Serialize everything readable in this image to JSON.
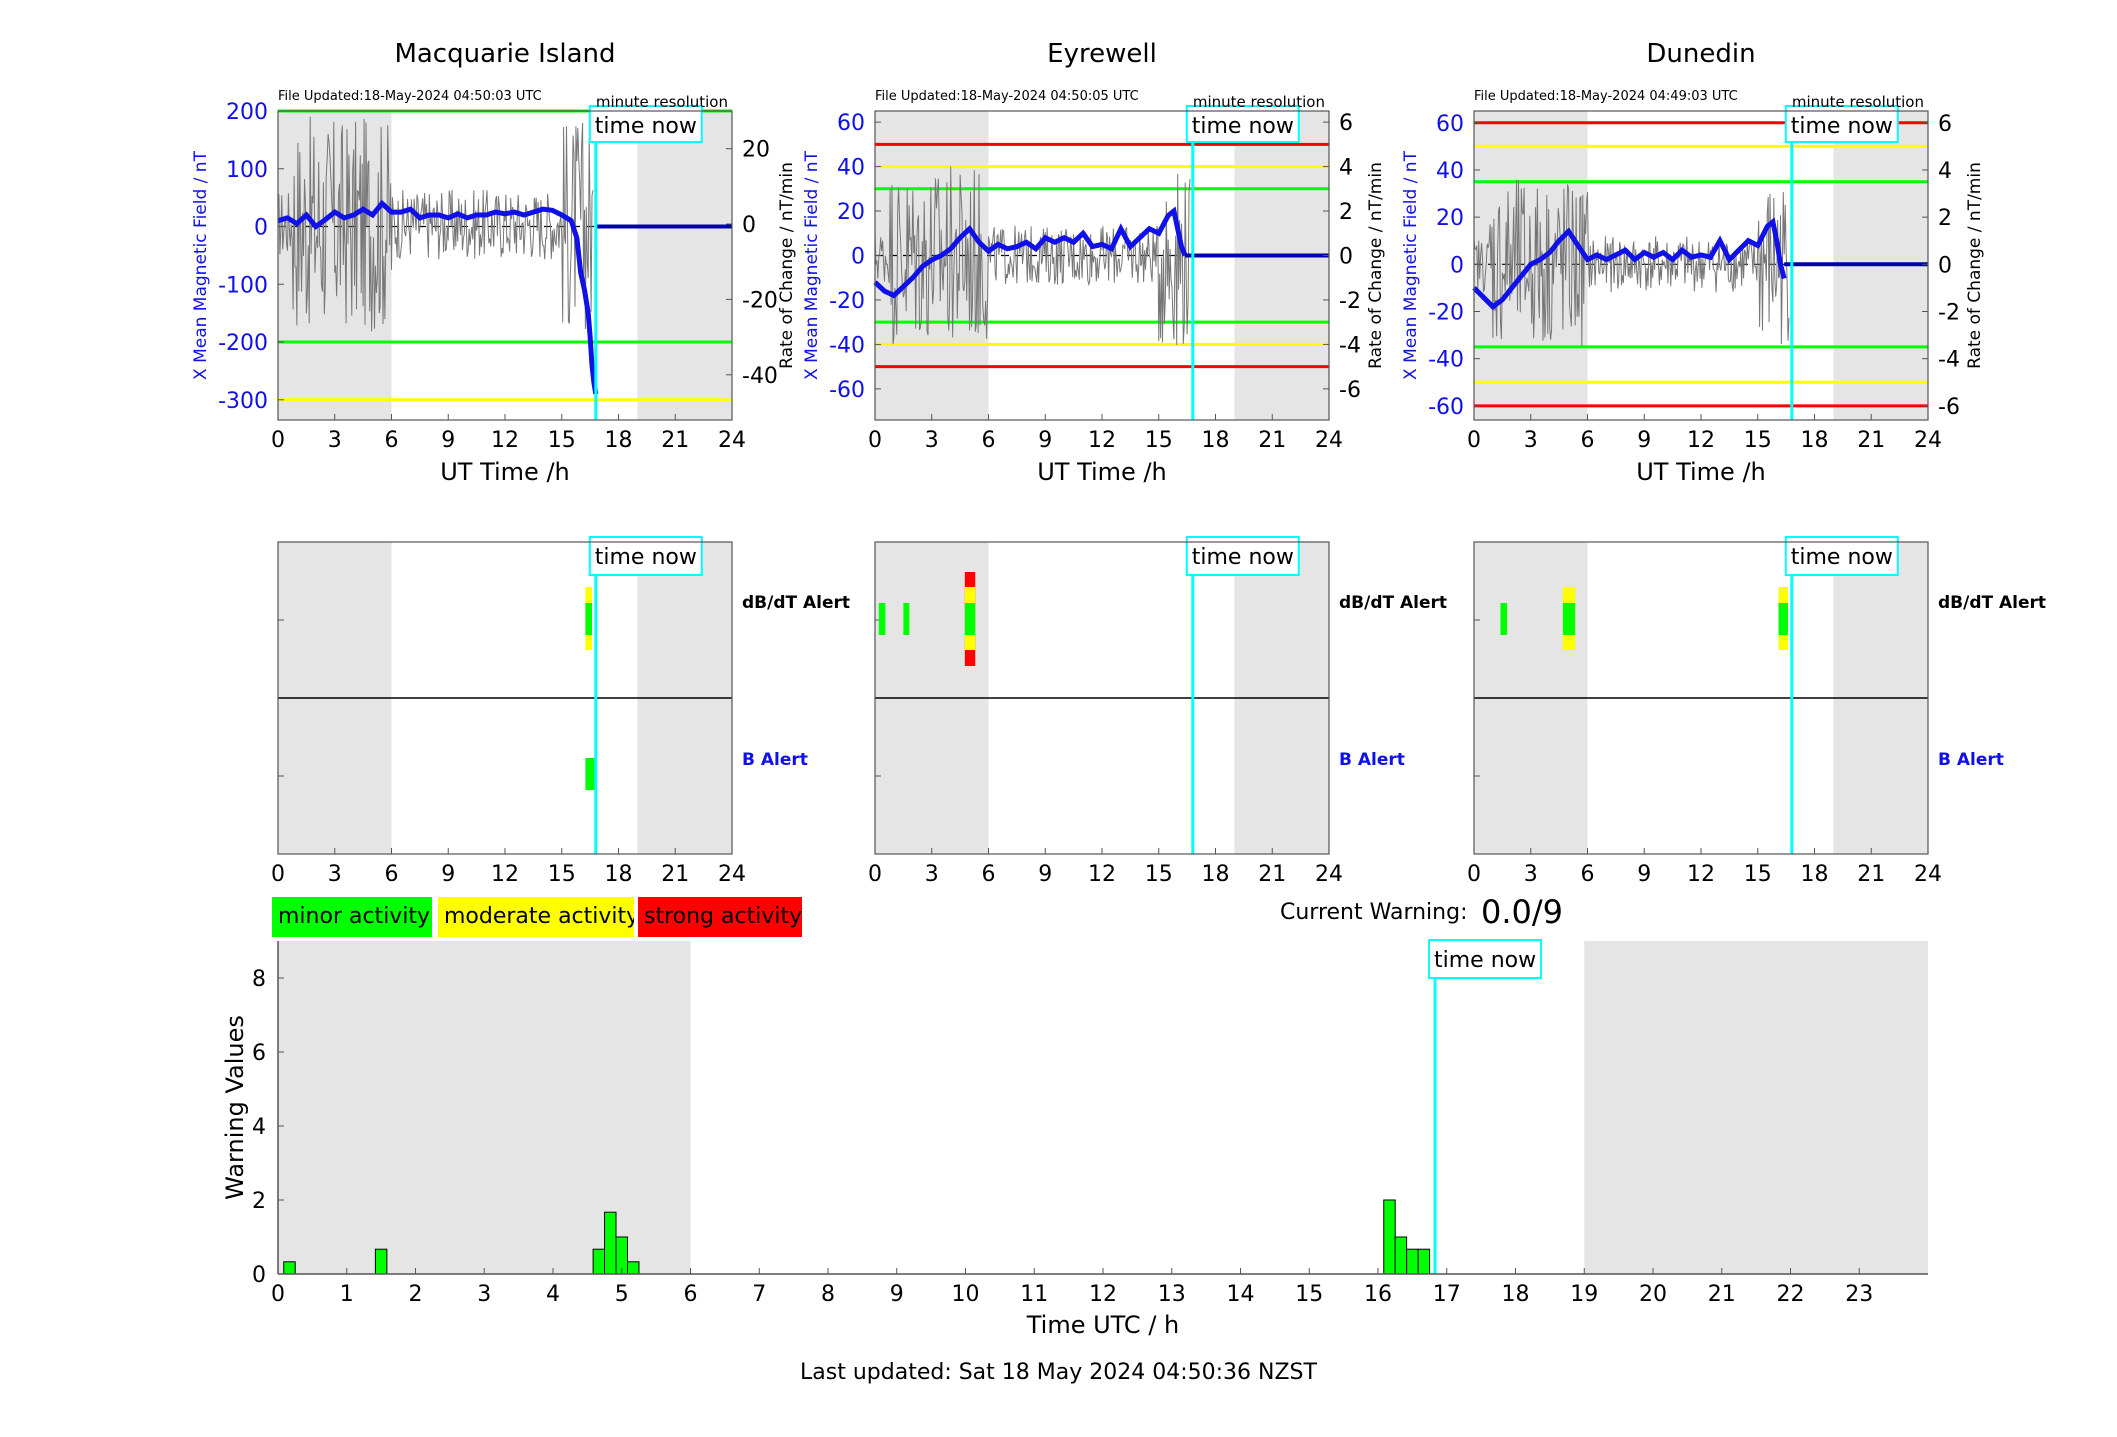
{
  "stations": [
    {
      "name": "Macquarie Island",
      "file_updated": "File Updated:18-May-2024 04:50:03 UTC",
      "resolution": "minute resolution",
      "ylabel_left": "X Mean Magnetic Field / nT",
      "ylabel_right": "Rate of Change / nT/min",
      "xlabel": "UT Time /h",
      "time_now_label": "time now",
      "ylim_left": [
        -335,
        200
      ],
      "yticks_left": [
        200,
        100,
        0,
        -100,
        -200,
        -300
      ],
      "ylim_right": [
        -52,
        30
      ],
      "yticks_right": [
        20,
        0,
        -20,
        -40
      ],
      "shade_hours": [
        [
          0,
          6
        ],
        [
          19,
          24
        ]
      ],
      "time_now_hour": 16.8,
      "threshold_lines": [
        {
          "value": 200,
          "color": "#00ff00"
        },
        {
          "value": -200,
          "color": "#00ff00"
        },
        {
          "value": -300,
          "color": "#ffff00"
        }
      ],
      "dbdt_alerts": [
        {
          "start": 16.25,
          "end": 16.6,
          "level": "moderate"
        }
      ],
      "b_alerts": [
        {
          "start": 16.25,
          "end": 16.85,
          "level": "minor"
        }
      ]
    },
    {
      "name": "Eyrewell",
      "file_updated": "File Updated:18-May-2024 04:50:05 UTC",
      "resolution": "minute resolution",
      "ylabel_left": "X Mean Magnetic Field / nT",
      "ylabel_right": "Rate of Change / nT/min",
      "xlabel": "UT Time /h",
      "time_now_label": "time now",
      "ylim_left": [
        -74,
        65
      ],
      "yticks_left": [
        60,
        40,
        20,
        0,
        -20,
        -40,
        -60
      ],
      "ylim_right": [
        -7.4,
        6.5
      ],
      "yticks_right": [
        6,
        4,
        2,
        0,
        -2,
        -4,
        -6
      ],
      "shade_hours": [
        [
          0,
          6
        ],
        [
          19,
          24
        ]
      ],
      "time_now_hour": 16.8,
      "threshold_lines": [
        {
          "value": 50,
          "color": "#ff0000"
        },
        {
          "value": 40,
          "color": "#ffff00"
        },
        {
          "value": 30,
          "color": "#00ff00"
        },
        {
          "value": -30,
          "color": "#00ff00"
        },
        {
          "value": -40,
          "color": "#ffff00"
        },
        {
          "value": -50,
          "color": "#ff0000"
        }
      ],
      "dbdt_alerts": [
        {
          "start": 0.2,
          "end": 0.55,
          "level": "minor"
        },
        {
          "start": 1.5,
          "end": 1.8,
          "level": "minor"
        },
        {
          "start": 4.75,
          "end": 5.3,
          "level": "strong"
        }
      ],
      "b_alerts": []
    },
    {
      "name": "Dunedin",
      "file_updated": "File Updated:18-May-2024 04:49:03 UTC",
      "resolution": "minute resolution",
      "ylabel_left": "X Mean Magnetic Field / nT",
      "ylabel_right": "Rate of Change / nT/min",
      "xlabel": "UT Time /h",
      "time_now_label": "time now",
      "ylim_left": [
        -66,
        65
      ],
      "yticks_left": [
        60,
        40,
        20,
        0,
        -20,
        -40,
        -60
      ],
      "ylim_right": [
        -6.6,
        6.5
      ],
      "yticks_right": [
        6,
        4,
        2,
        0,
        -2,
        -4,
        -6
      ],
      "shade_hours": [
        [
          0,
          6
        ],
        [
          19,
          24
        ]
      ],
      "time_now_hour": 16.8,
      "threshold_lines": [
        {
          "value": 60,
          "color": "#ff0000"
        },
        {
          "value": 50,
          "color": "#ffff00"
        },
        {
          "value": 35,
          "color": "#00ff00"
        },
        {
          "value": -35,
          "color": "#00ff00"
        },
        {
          "value": -50,
          "color": "#ffff00"
        },
        {
          "value": -60,
          "color": "#ff0000"
        }
      ],
      "dbdt_alerts": [
        {
          "start": 1.4,
          "end": 1.75,
          "level": "minor"
        },
        {
          "start": 4.7,
          "end": 5.35,
          "level": "moderate"
        },
        {
          "start": 16.1,
          "end": 16.6,
          "level": "moderate"
        }
      ],
      "b_alerts": []
    }
  ],
  "alert_labels": {
    "dbdt": "dB/dT Alert",
    "b": "B Alert"
  },
  "xticks_hours": [
    0,
    3,
    6,
    9,
    12,
    15,
    18,
    21,
    24
  ],
  "legend": {
    "minor": "minor activity",
    "moderate": "moderate activity",
    "strong": "strong activity",
    "colors": {
      "minor": "#00ff00",
      "moderate": "#ffff00",
      "strong": "#ff0000",
      "inner_strong": "#00ff00"
    }
  },
  "current_warning": {
    "label": "Current Warning:",
    "value": "0.0/9"
  },
  "last_updated": "Last updated: Sat 18 May 2024 04:50:36 NZST",
  "chart_data": [
    {
      "type": "line",
      "title": "Macquarie Island",
      "xlabel": "UT Time /h",
      "ylabel": "X Mean Magnetic Field / nT",
      "ylabel_right": "Rate of Change / nT/min",
      "xlim": [
        0,
        24
      ],
      "ylim": [
        -335,
        200
      ],
      "series": [
        {
          "x": [
            0,
            0.5,
            1,
            1.5,
            2,
            2.5,
            3,
            3.5,
            4,
            4.5,
            5,
            5.5,
            6,
            6.5,
            7,
            7.5,
            8,
            8.5,
            9,
            9.5,
            10,
            10.5,
            11,
            11.5,
            12,
            12.5,
            13,
            13.5,
            14,
            14.5,
            15,
            15.5,
            15.8,
            16,
            16.2,
            16.4,
            16.5,
            16.6,
            16.7,
            16.8
          ],
          "y": [
            10,
            15,
            5,
            20,
            0,
            12,
            25,
            15,
            20,
            30,
            20,
            40,
            25,
            25,
            30,
            15,
            20,
            20,
            15,
            22,
            15,
            20,
            20,
            25,
            22,
            25,
            20,
            25,
            30,
            28,
            20,
            10,
            -20,
            -80,
            -110,
            -150,
            -190,
            -240,
            -270,
            -290
          ]
        },
        {
          "x": [
            16.8,
            24
          ],
          "y": [
            0,
            0
          ]
        }
      ]
    },
    {
      "type": "line",
      "title": "Eyrewell",
      "xlabel": "UT Time /h",
      "ylabel": "X Mean Magnetic Field / nT",
      "ylabel_right": "Rate of Change / nT/min",
      "xlim": [
        0,
        24
      ],
      "ylim": [
        -74,
        65
      ],
      "series": [
        {
          "x": [
            0,
            0.5,
            1,
            1.5,
            2,
            2.5,
            3,
            3.5,
            4,
            4.5,
            5,
            5.5,
            6,
            6.5,
            7,
            7.5,
            8,
            8.5,
            9,
            9.5,
            10,
            10.5,
            11,
            11.5,
            12,
            12.5,
            13,
            13.5,
            14,
            14.5,
            15,
            15.5,
            15.8,
            16,
            16.2,
            16.4
          ],
          "y": [
            -12,
            -16,
            -18,
            -14,
            -10,
            -5,
            -2,
            0,
            3,
            8,
            12,
            6,
            2,
            5,
            3,
            4,
            6,
            3,
            8,
            6,
            8,
            6,
            10,
            4,
            5,
            3,
            12,
            4,
            8,
            12,
            10,
            18,
            20,
            12,
            4,
            0
          ]
        },
        {
          "x": [
            16.4,
            24
          ],
          "y": [
            0,
            0
          ]
        }
      ]
    },
    {
      "type": "line",
      "title": "Dunedin",
      "xlabel": "UT Time /h",
      "ylabel": "X Mean Magnetic Field / nT",
      "ylabel_right": "Rate of Change / nT/min",
      "xlim": [
        0,
        24
      ],
      "ylim": [
        -66,
        65
      ],
      "series": [
        {
          "x": [
            0,
            0.5,
            1,
            1.5,
            2,
            2.5,
            3,
            3.5,
            4,
            4.5,
            5,
            5.5,
            6,
            6.5,
            7,
            7.5,
            8,
            8.5,
            9,
            9.5,
            10,
            10.5,
            11,
            11.5,
            12,
            12.5,
            13,
            13.5,
            14,
            14.5,
            15,
            15.5,
            15.8,
            16,
            16.2,
            16.4
          ],
          "y": [
            -10,
            -14,
            -18,
            -15,
            -10,
            -5,
            0,
            2,
            5,
            10,
            14,
            8,
            2,
            4,
            2,
            4,
            6,
            2,
            5,
            3,
            5,
            2,
            6,
            3,
            4,
            3,
            10,
            2,
            6,
            10,
            8,
            16,
            18,
            10,
            0,
            -6
          ]
        },
        {
          "x": [
            16.4,
            24
          ],
          "y": [
            0,
            0
          ]
        }
      ]
    },
    {
      "type": "bar",
      "xlabel": "Time UTC / h",
      "ylabel": "Warning Values",
      "xlim": [
        0,
        24
      ],
      "ylim": [
        0,
        9
      ],
      "xticks": [
        0,
        1,
        2,
        3,
        4,
        5,
        6,
        7,
        8,
        9,
        10,
        11,
        12,
        13,
        14,
        15,
        16,
        17,
        18,
        19,
        20,
        21,
        22,
        23
      ],
      "yticks": [
        0,
        2,
        4,
        6,
        8
      ],
      "time_now_label": "time now",
      "time_now_hour": 16.83,
      "shade_hours": [
        [
          0,
          6
        ],
        [
          19,
          24
        ]
      ],
      "bar_width_hours": 0.1667,
      "x": [
        0.167,
        1.5,
        4.667,
        4.833,
        5.0,
        5.167,
        16.167,
        16.333,
        16.5,
        16.667
      ],
      "values": [
        0.33,
        0.67,
        0.67,
        1.67,
        1.0,
        0.33,
        2.0,
        1.0,
        0.67,
        0.67
      ],
      "bar_color": "#00ff00"
    }
  ]
}
